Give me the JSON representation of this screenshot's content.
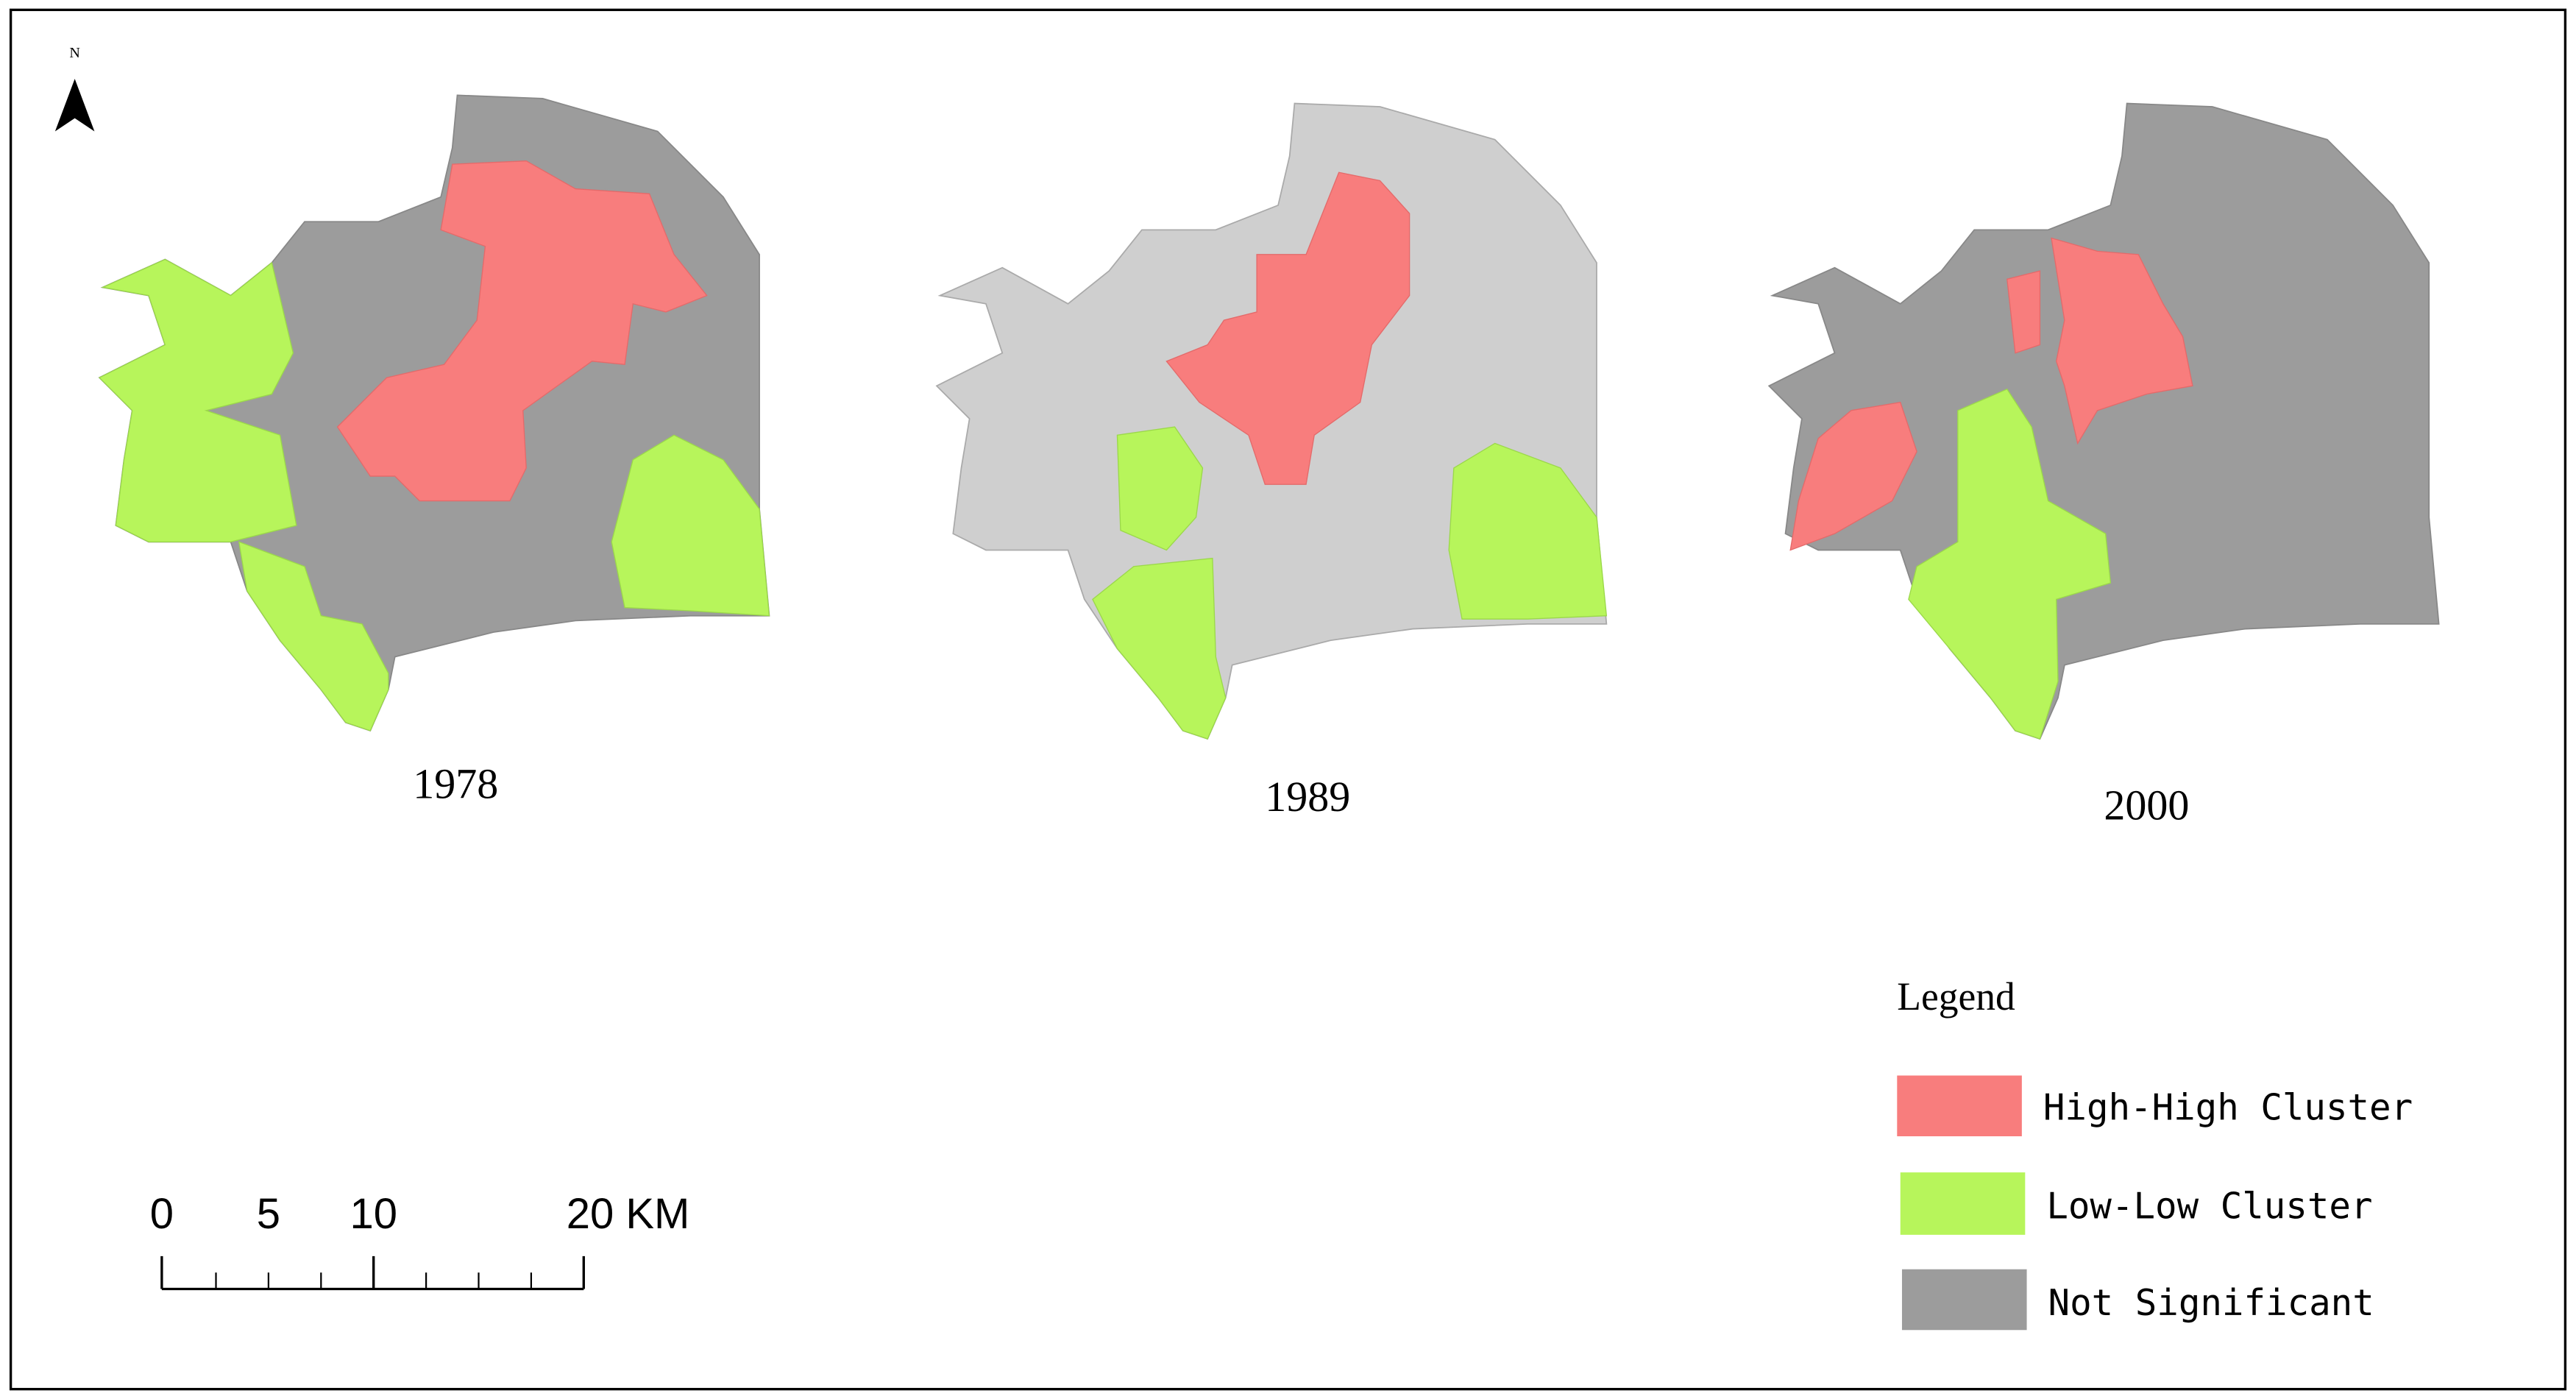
{
  "north": "N",
  "maps": [
    {
      "year": "1978"
    },
    {
      "year": "1989"
    },
    {
      "year": "2000"
    }
  ],
  "legend": {
    "title": "Legend",
    "items": [
      {
        "label": "High-High Cluster"
      },
      {
        "label": "Low-Low Cluster"
      },
      {
        "label": "Not Significant"
      }
    ]
  },
  "scale_bar": {
    "labels": [
      "0",
      "5",
      "10",
      "20 KM"
    ]
  }
}
